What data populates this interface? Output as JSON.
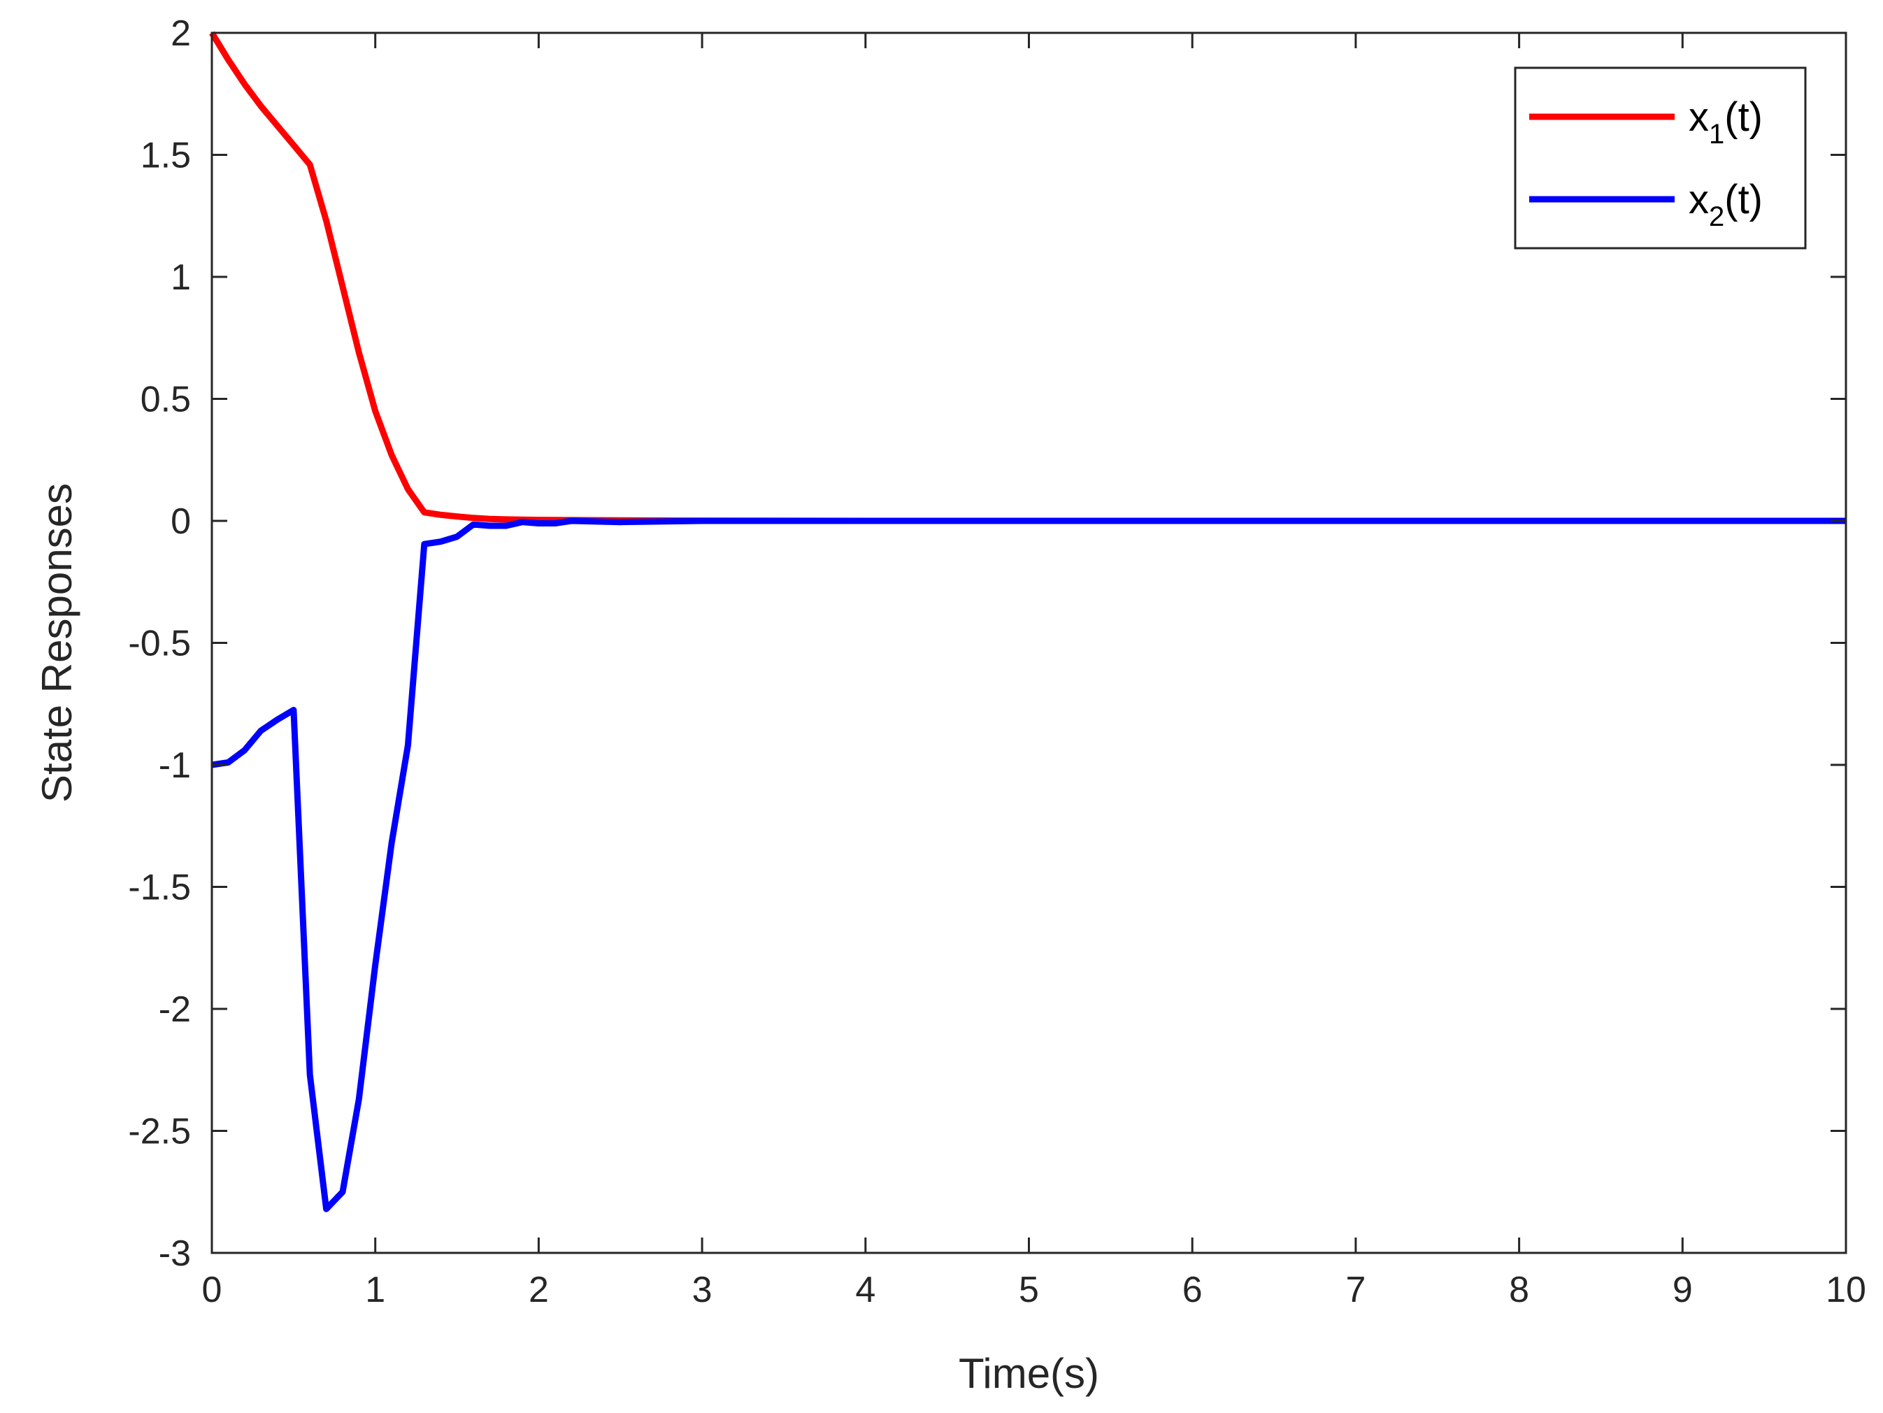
{
  "chart_data": {
    "type": "line",
    "title": "",
    "xlabel": "Time(s)",
    "ylabel": "State Responses",
    "xlim": [
      0,
      10
    ],
    "ylim": [
      -3,
      2
    ],
    "xticks": [
      "0",
      "1",
      "2",
      "3",
      "4",
      "5",
      "6",
      "7",
      "8",
      "9",
      "10"
    ],
    "yticks": [
      "2",
      "1.5",
      "1",
      "0.5",
      "0",
      "-0.5",
      "-1",
      "-1.5",
      "-2",
      "-2.5",
      "-3"
    ],
    "grid": false,
    "legend_location": "top-right",
    "series": [
      {
        "name": "x",
        "subscript": "1",
        "suffix": "(t)",
        "color": "#ff0000",
        "x": [
          0,
          0.1,
          0.2,
          0.3,
          0.4,
          0.5,
          0.6,
          0.7,
          0.8,
          0.9,
          1.0,
          1.1,
          1.2,
          1.3,
          1.4,
          1.5,
          1.6,
          1.7,
          1.8,
          2.0,
          2.5,
          3.0,
          4.0,
          5.0,
          6.0,
          7.0,
          8.0,
          9.0,
          10.0
        ],
        "y": [
          2.0,
          1.89,
          1.79,
          1.7,
          1.62,
          1.54,
          1.46,
          1.23,
          0.96,
          0.69,
          0.45,
          0.27,
          0.13,
          0.035,
          0.025,
          0.018,
          0.012,
          0.008,
          0.006,
          0.004,
          0.002,
          0.001,
          0.0,
          0.0,
          0.0,
          0.0,
          0.0,
          0.0,
          0.0
        ]
      },
      {
        "name": "x",
        "subscript": "2",
        "suffix": "(t)",
        "color": "#0000ff",
        "x": [
          0,
          0.1,
          0.2,
          0.3,
          0.4,
          0.5,
          0.6,
          0.7,
          0.8,
          0.9,
          1.0,
          1.1,
          1.2,
          1.3,
          1.4,
          1.5,
          1.6,
          1.7,
          1.8,
          1.9,
          2.0,
          2.1,
          2.2,
          2.5,
          3.0,
          4.0,
          5.0,
          6.0,
          7.0,
          8.0,
          9.0,
          10.0
        ],
        "y": [
          -1.0,
          -0.99,
          -0.94,
          -0.86,
          -0.815,
          -0.775,
          -2.27,
          -2.82,
          -2.75,
          -2.37,
          -1.82,
          -1.32,
          -0.92,
          -0.095,
          -0.085,
          -0.065,
          -0.015,
          -0.02,
          -0.02,
          -0.005,
          -0.01,
          -0.01,
          0.0,
          -0.005,
          0.0,
          0.0,
          0.0,
          0.0,
          0.0,
          0.0,
          0.0,
          0.0
        ]
      }
    ]
  }
}
